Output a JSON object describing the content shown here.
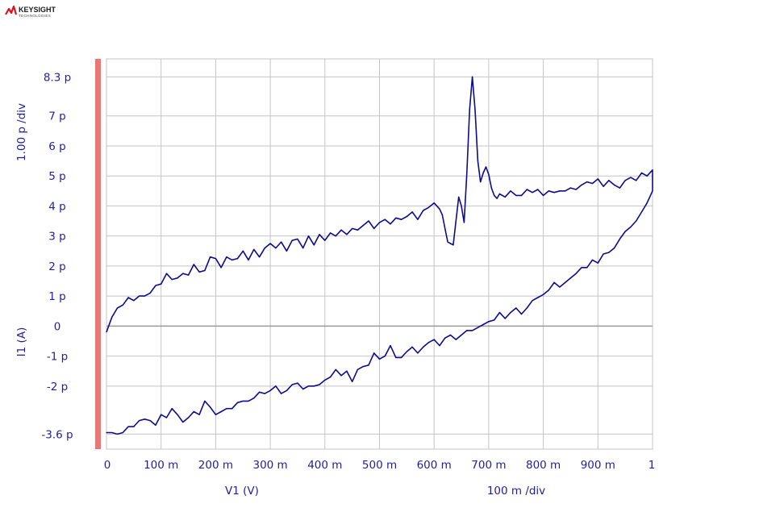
{
  "brand": {
    "name": "KEYSIGHT",
    "sub": "TECHNOLOGIES",
    "color": "#e0101c"
  },
  "chart_data": {
    "type": "line",
    "xlabel": "V1 (V)",
    "ylabel": "I1 (A)",
    "x_scale_label": "100 m /div",
    "y_scale_label": "1.00 p /div",
    "xlim": [
      0,
      1
    ],
    "ylim": [
      -4.1,
      8.9
    ],
    "x_ticks": [
      {
        "v": 0,
        "label": "0"
      },
      {
        "v": 0.1,
        "label": "100 m"
      },
      {
        "v": 0.2,
        "label": "200 m"
      },
      {
        "v": 0.3,
        "label": "300 m"
      },
      {
        "v": 0.4,
        "label": "400 m"
      },
      {
        "v": 0.5,
        "label": "500 m"
      },
      {
        "v": 0.6,
        "label": "600 m"
      },
      {
        "v": 0.7,
        "label": "700 m"
      },
      {
        "v": 0.8,
        "label": "800 m"
      },
      {
        "v": 0.9,
        "label": "900 m"
      },
      {
        "v": 1.0,
        "label": "1"
      }
    ],
    "y_ticks": [
      {
        "v": 8.3,
        "label": "8.3 p"
      },
      {
        "v": 7,
        "label": "7 p"
      },
      {
        "v": 6,
        "label": "6 p"
      },
      {
        "v": 5,
        "label": "5 p"
      },
      {
        "v": 4,
        "label": "4 p"
      },
      {
        "v": 3,
        "label": "3 p"
      },
      {
        "v": 2,
        "label": "2 p"
      },
      {
        "v": 1,
        "label": "1 p"
      },
      {
        "v": 0,
        "label": "0"
      },
      {
        "v": -1,
        "label": "-1 p"
      },
      {
        "v": -2,
        "label": "-2 p"
      },
      {
        "v": -3.6,
        "label": "-3.6 p"
      }
    ],
    "grid": true,
    "colors": {
      "trace": "#0c0c8c",
      "grid": "#c4c4c4",
      "zero_line": "#999999",
      "marker_bar": "#e87878",
      "text": "#1f1f99"
    },
    "series": [
      {
        "points": [
          [
            0,
            -0.2
          ],
          [
            0.01,
            0.3
          ],
          [
            0.02,
            0.6
          ],
          [
            0.03,
            0.7
          ],
          [
            0.04,
            0.95
          ],
          [
            0.05,
            0.85
          ],
          [
            0.06,
            1.0
          ],
          [
            0.07,
            1.0
          ],
          [
            0.08,
            1.1
          ],
          [
            0.09,
            1.35
          ],
          [
            0.1,
            1.4
          ],
          [
            0.11,
            1.75
          ],
          [
            0.12,
            1.55
          ],
          [
            0.13,
            1.6
          ],
          [
            0.14,
            1.75
          ],
          [
            0.15,
            1.7
          ],
          [
            0.16,
            2.05
          ],
          [
            0.17,
            1.8
          ],
          [
            0.18,
            1.85
          ],
          [
            0.19,
            2.3
          ],
          [
            0.2,
            2.25
          ],
          [
            0.21,
            1.95
          ],
          [
            0.22,
            2.3
          ],
          [
            0.23,
            2.2
          ],
          [
            0.24,
            2.25
          ],
          [
            0.25,
            2.5
          ],
          [
            0.26,
            2.2
          ],
          [
            0.27,
            2.55
          ],
          [
            0.28,
            2.3
          ],
          [
            0.29,
            2.6
          ],
          [
            0.3,
            2.75
          ],
          [
            0.31,
            2.6
          ],
          [
            0.32,
            2.8
          ],
          [
            0.33,
            2.5
          ],
          [
            0.34,
            2.85
          ],
          [
            0.35,
            2.9
          ],
          [
            0.36,
            2.6
          ],
          [
            0.37,
            3.0
          ],
          [
            0.38,
            2.7
          ],
          [
            0.39,
            3.05
          ],
          [
            0.4,
            2.85
          ],
          [
            0.41,
            3.1
          ],
          [
            0.42,
            3.0
          ],
          [
            0.43,
            3.2
          ],
          [
            0.44,
            3.05
          ],
          [
            0.45,
            3.25
          ],
          [
            0.46,
            3.2
          ],
          [
            0.47,
            3.35
          ],
          [
            0.48,
            3.5
          ],
          [
            0.49,
            3.25
          ],
          [
            0.5,
            3.45
          ],
          [
            0.51,
            3.55
          ],
          [
            0.52,
            3.4
          ],
          [
            0.53,
            3.6
          ],
          [
            0.54,
            3.55
          ],
          [
            0.55,
            3.65
          ],
          [
            0.56,
            3.8
          ],
          [
            0.57,
            3.55
          ],
          [
            0.58,
            3.85
          ],
          [
            0.59,
            3.95
          ],
          [
            0.6,
            4.1
          ],
          [
            0.61,
            3.9
          ],
          [
            0.615,
            3.7
          ],
          [
            0.62,
            3.25
          ],
          [
            0.625,
            2.8
          ],
          [
            0.63,
            2.75
          ],
          [
            0.635,
            2.7
          ],
          [
            0.64,
            3.5
          ],
          [
            0.645,
            4.3
          ],
          [
            0.65,
            4.0
          ],
          [
            0.655,
            3.45
          ],
          [
            0.66,
            5.1
          ],
          [
            0.665,
            7.2
          ],
          [
            0.67,
            8.3
          ],
          [
            0.675,
            7.2
          ],
          [
            0.68,
            5.5
          ],
          [
            0.685,
            4.8
          ],
          [
            0.69,
            5.1
          ],
          [
            0.695,
            5.3
          ],
          [
            0.7,
            5.05
          ],
          [
            0.705,
            4.6
          ],
          [
            0.71,
            4.35
          ],
          [
            0.715,
            4.25
          ],
          [
            0.72,
            4.4
          ],
          [
            0.73,
            4.3
          ],
          [
            0.74,
            4.5
          ],
          [
            0.75,
            4.35
          ],
          [
            0.76,
            4.35
          ],
          [
            0.77,
            4.55
          ],
          [
            0.78,
            4.45
          ],
          [
            0.79,
            4.55
          ],
          [
            0.8,
            4.35
          ],
          [
            0.81,
            4.5
          ],
          [
            0.82,
            4.45
          ],
          [
            0.83,
            4.5
          ],
          [
            0.84,
            4.5
          ],
          [
            0.85,
            4.6
          ],
          [
            0.86,
            4.55
          ],
          [
            0.87,
            4.7
          ],
          [
            0.88,
            4.8
          ],
          [
            0.89,
            4.75
          ],
          [
            0.9,
            4.9
          ],
          [
            0.91,
            4.65
          ],
          [
            0.92,
            4.85
          ],
          [
            0.93,
            4.7
          ],
          [
            0.94,
            4.6
          ],
          [
            0.95,
            4.85
          ],
          [
            0.96,
            4.95
          ],
          [
            0.97,
            4.85
          ],
          [
            0.98,
            5.1
          ],
          [
            0.99,
            5.0
          ],
          [
            1.0,
            5.2
          ],
          [
            1.0,
            4.5
          ],
          [
            0.99,
            4.1
          ],
          [
            0.98,
            3.8
          ],
          [
            0.97,
            3.5
          ],
          [
            0.96,
            3.3
          ],
          [
            0.95,
            3.15
          ],
          [
            0.94,
            2.9
          ],
          [
            0.93,
            2.6
          ],
          [
            0.92,
            2.45
          ],
          [
            0.91,
            2.4
          ],
          [
            0.9,
            2.1
          ],
          [
            0.89,
            2.2
          ],
          [
            0.88,
            1.95
          ],
          [
            0.87,
            1.95
          ],
          [
            0.86,
            1.75
          ],
          [
            0.85,
            1.6
          ],
          [
            0.84,
            1.45
          ],
          [
            0.83,
            1.3
          ],
          [
            0.82,
            1.45
          ],
          [
            0.81,
            1.2
          ],
          [
            0.8,
            1.05
          ],
          [
            0.79,
            0.95
          ],
          [
            0.78,
            0.85
          ],
          [
            0.77,
            0.6
          ],
          [
            0.76,
            0.4
          ],
          [
            0.75,
            0.6
          ],
          [
            0.74,
            0.45
          ],
          [
            0.73,
            0.25
          ],
          [
            0.72,
            0.45
          ],
          [
            0.71,
            0.2
          ],
          [
            0.7,
            0.15
          ],
          [
            0.69,
            0.05
          ],
          [
            0.68,
            -0.05
          ],
          [
            0.67,
            -0.15
          ],
          [
            0.66,
            -0.15
          ],
          [
            0.65,
            -0.3
          ],
          [
            0.64,
            -0.45
          ],
          [
            0.63,
            -0.3
          ],
          [
            0.62,
            -0.4
          ],
          [
            0.61,
            -0.65
          ],
          [
            0.6,
            -0.45
          ],
          [
            0.59,
            -0.55
          ],
          [
            0.58,
            -0.7
          ],
          [
            0.57,
            -0.9
          ],
          [
            0.56,
            -0.7
          ],
          [
            0.55,
            -0.85
          ],
          [
            0.54,
            -1.05
          ],
          [
            0.53,
            -1.05
          ],
          [
            0.52,
            -0.65
          ],
          [
            0.51,
            -1.0
          ],
          [
            0.5,
            -1.1
          ],
          [
            0.49,
            -0.9
          ],
          [
            0.48,
            -1.3
          ],
          [
            0.47,
            -1.35
          ],
          [
            0.46,
            -1.45
          ],
          [
            0.45,
            -1.85
          ],
          [
            0.44,
            -1.5
          ],
          [
            0.43,
            -1.65
          ],
          [
            0.42,
            -1.45
          ],
          [
            0.41,
            -1.7
          ],
          [
            0.4,
            -1.8
          ],
          [
            0.39,
            -1.95
          ],
          [
            0.38,
            -2.0
          ],
          [
            0.37,
            -2.0
          ],
          [
            0.36,
            -2.1
          ],
          [
            0.35,
            -1.9
          ],
          [
            0.34,
            -1.95
          ],
          [
            0.33,
            -2.15
          ],
          [
            0.32,
            -2.25
          ],
          [
            0.31,
            -2.0
          ],
          [
            0.3,
            -2.15
          ],
          [
            0.29,
            -2.25
          ],
          [
            0.28,
            -2.2
          ],
          [
            0.27,
            -2.4
          ],
          [
            0.26,
            -2.5
          ],
          [
            0.25,
            -2.5
          ],
          [
            0.24,
            -2.55
          ],
          [
            0.23,
            -2.75
          ],
          [
            0.22,
            -2.75
          ],
          [
            0.21,
            -2.85
          ],
          [
            0.2,
            -2.95
          ],
          [
            0.19,
            -2.7
          ],
          [
            0.18,
            -2.5
          ],
          [
            0.17,
            -2.95
          ],
          [
            0.16,
            -2.85
          ],
          [
            0.15,
            -3.05
          ],
          [
            0.14,
            -3.2
          ],
          [
            0.13,
            -2.95
          ],
          [
            0.12,
            -2.75
          ],
          [
            0.11,
            -3.05
          ],
          [
            0.1,
            -2.95
          ],
          [
            0.09,
            -3.3
          ],
          [
            0.08,
            -3.15
          ],
          [
            0.07,
            -3.1
          ],
          [
            0.06,
            -3.15
          ],
          [
            0.05,
            -3.35
          ],
          [
            0.04,
            -3.35
          ],
          [
            0.03,
            -3.55
          ],
          [
            0.02,
            -3.6
          ],
          [
            0.01,
            -3.55
          ],
          [
            0.0,
            -3.55
          ]
        ]
      }
    ]
  }
}
